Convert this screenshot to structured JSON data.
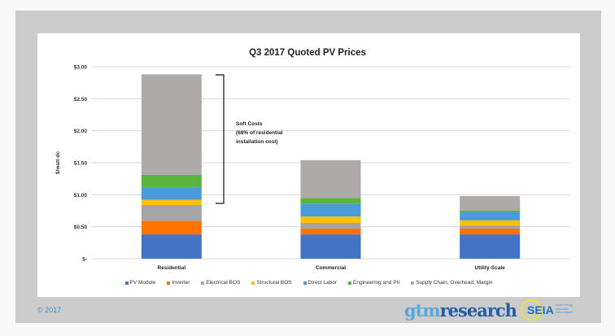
{
  "chart_data": {
    "type": "bar",
    "stacked": true,
    "title": "Q3 2017 Quoted PV Prices",
    "xlabel": "",
    "ylabel": "$/watt-dc",
    "ylim": [
      0,
      3.0
    ],
    "yticks": [
      0,
      0.5,
      1.0,
      1.5,
      2.0,
      2.5,
      3.0
    ],
    "ytick_labels": [
      "$-",
      "$0.50",
      "$1.00",
      "$1.50",
      "$2.00",
      "$2.50",
      "$3.00"
    ],
    "grid": true,
    "legend_position": "bottom",
    "categories": [
      "Residential",
      "Commercial",
      "Utility-Scale"
    ],
    "series": [
      {
        "name": "PV Module",
        "color": "#4472c4",
        "values": [
          0.38,
          0.38,
          0.38
        ]
      },
      {
        "name": "Inverter",
        "color": "#ff7300",
        "values": [
          0.21,
          0.09,
          0.09
        ]
      },
      {
        "name": "Electrical BOS",
        "color": "#a5a5a5",
        "values": [
          0.25,
          0.09,
          0.05
        ]
      },
      {
        "name": "Structural BOS",
        "color": "#ffc000",
        "values": [
          0.08,
          0.1,
          0.08
        ]
      },
      {
        "name": "Direct Labor",
        "color": "#4a9bdb",
        "values": [
          0.2,
          0.2,
          0.13
        ]
      },
      {
        "name": "Engineering and PII",
        "color": "#5ab43c",
        "values": [
          0.19,
          0.09,
          0.02
        ]
      },
      {
        "name": "Supply Chain, Overhead, Margin",
        "color": "#aeaaaa",
        "values": [
          1.57,
          0.59,
          0.23
        ]
      }
    ],
    "annotations": [
      {
        "text_lines": [
          "Soft Costs",
          "(68% of residential",
          "installation cost)"
        ],
        "bracket_range": [
          0.92,
          2.88
        ],
        "category": "Residential"
      }
    ]
  },
  "footer": {
    "copyright": "© 2017",
    "logo_gtm_a": "gtm",
    "logo_gtm_b": "research",
    "logo_seia": "SEIA",
    "logo_seia_sub": "Solar Energy Industries Association®"
  }
}
